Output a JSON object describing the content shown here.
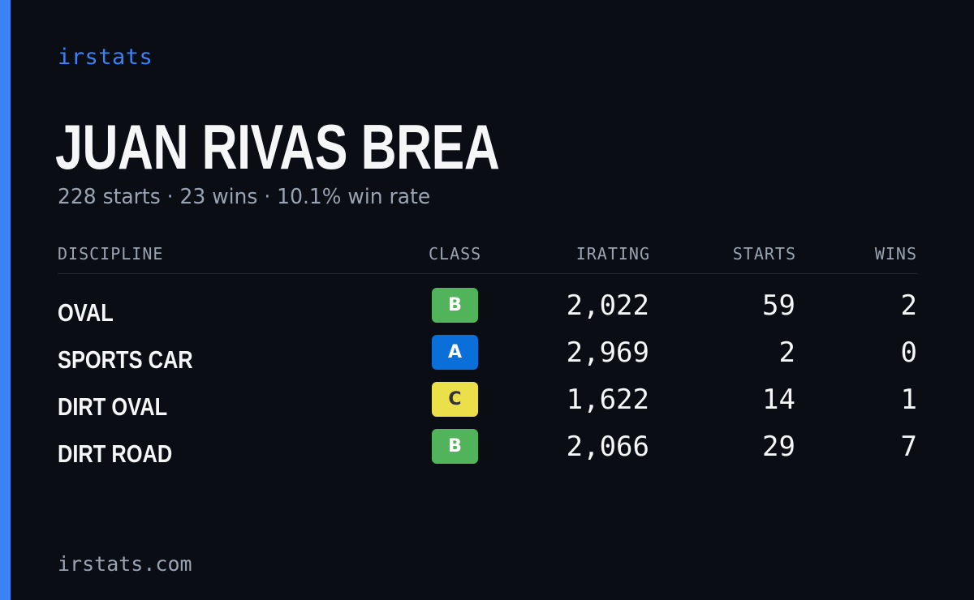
{
  "brand": "irstats",
  "player_name": "JUAN RIVAS BREA",
  "summary": "228 starts · 23 wins · 10.1% win rate",
  "table": {
    "headers": {
      "discipline": "DISCIPLINE",
      "class": "CLASS",
      "irating": "IRATING",
      "starts": "STARTS",
      "wins": "WINS"
    },
    "rows": [
      {
        "discipline": "OVAL",
        "class": "B",
        "irating": "2,022",
        "starts": "59",
        "wins": "2"
      },
      {
        "discipline": "SPORTS CAR",
        "class": "A",
        "irating": "2,969",
        "starts": "2",
        "wins": "0"
      },
      {
        "discipline": "DIRT OVAL",
        "class": "C",
        "irating": "1,622",
        "starts": "14",
        "wins": "1"
      },
      {
        "discipline": "DIRT ROAD",
        "class": "B",
        "irating": "2,066",
        "starts": "29",
        "wins": "7"
      }
    ]
  },
  "class_colors": {
    "A": {
      "bg": "#0a6fd8",
      "fg": "#ffffff"
    },
    "B": {
      "bg": "#52b45a",
      "fg": "#ffffff"
    },
    "C": {
      "bg": "#ebe04a",
      "fg": "#333333"
    }
  },
  "colors": {
    "accent": "#3b82f6",
    "background": "#0a0d14",
    "muted_text": "#9aa3b2"
  },
  "footer": "irstats.com"
}
